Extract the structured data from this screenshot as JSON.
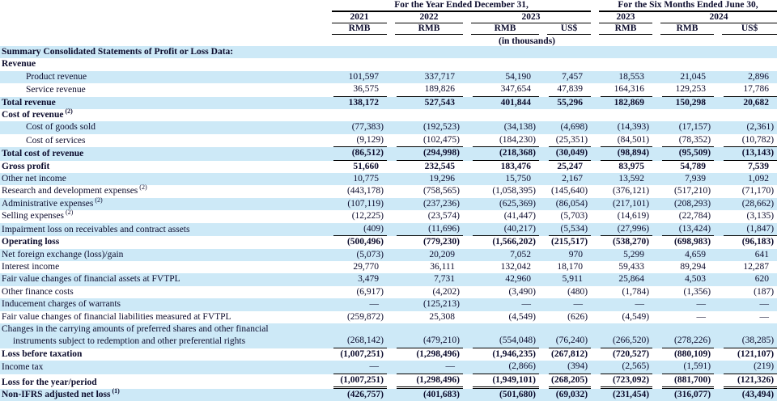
{
  "header": {
    "group1": "For the Year Ended December 31,",
    "group2": "For the Six Months Ended June 30,",
    "years": [
      {
        "label": "2021",
        "span": 1
      },
      {
        "label": "2022",
        "span": 1
      },
      {
        "label": "2023",
        "span": 2
      },
      {
        "label": "2023",
        "span": 1
      },
      {
        "label": "2024",
        "span": 2
      }
    ],
    "currencies": [
      "RMB",
      "RMB",
      "RMB",
      "US$",
      "RMB",
      "RMB",
      "US$"
    ],
    "units_note": "(in thousands)"
  },
  "rows": [
    {
      "label": "Summary Consolidated Statements of Profit or Loss Data:",
      "bold": true,
      "highlight": true,
      "values": []
    },
    {
      "label": "Revenue",
      "bold": true,
      "highlight": false,
      "values": []
    },
    {
      "label": "Product revenue",
      "indent": 1,
      "highlight": true,
      "values": [
        "101,597",
        "337,717",
        "54,190",
        "7,457",
        "18,553",
        "21,045",
        "2,896"
      ]
    },
    {
      "label": "Service revenue",
      "indent": 1,
      "highlight": false,
      "border": "bottom",
      "values": [
        "36,575",
        "189,826",
        "347,654",
        "47,839",
        "164,316",
        "129,253",
        "17,786"
      ]
    },
    {
      "label": "Total revenue",
      "bold": true,
      "highlight": true,
      "values": [
        "138,172",
        "527,543",
        "401,844",
        "55,296",
        "182,869",
        "150,298",
        "20,682"
      ]
    },
    {
      "label": "Cost of revenue",
      "sup": "(2)",
      "bold": true,
      "highlight": false,
      "values": []
    },
    {
      "label": "Cost of goods sold",
      "indent": 1,
      "highlight": true,
      "values": [
        "(77,383)",
        "(192,523)",
        "(34,138)",
        "(4,698)",
        "(14,393)",
        "(17,157)",
        "(2,361)"
      ]
    },
    {
      "label": "Cost of services",
      "indent": 1,
      "highlight": false,
      "border": "bottom",
      "values": [
        "(9,129)",
        "(102,475)",
        "(184,230)",
        "(25,351)",
        "(84,501)",
        "(78,352)",
        "(10,782)"
      ]
    },
    {
      "label": "Total cost of revenue",
      "bold": true,
      "highlight": true,
      "border": "bottom",
      "values": [
        "(86,512)",
        "(294,998)",
        "(218,368)",
        "(30,049)",
        "(98,894)",
        "(95,509)",
        "(13,143)"
      ]
    },
    {
      "label": "Gross profit",
      "bold": true,
      "highlight": false,
      "values": [
        "51,660",
        "232,545",
        "183,476",
        "25,247",
        "83,975",
        "54,789",
        "7,539"
      ]
    },
    {
      "label": "Other net income",
      "highlight": true,
      "values": [
        "10,775",
        "19,296",
        "15,750",
        "2,167",
        "13,592",
        "7,939",
        "1,092"
      ]
    },
    {
      "label": "Research and development expenses",
      "sup": "(2)",
      "highlight": false,
      "values": [
        "(443,178)",
        "(758,565)",
        "(1,058,395)",
        "(145,640)",
        "(376,121)",
        "(517,210)",
        "(71,170)"
      ]
    },
    {
      "label": "Administrative expenses",
      "sup": "(2)",
      "highlight": true,
      "values": [
        "(107,119)",
        "(237,236)",
        "(625,369)",
        "(86,054)",
        "(217,101)",
        "(208,293)",
        "(28,662)"
      ]
    },
    {
      "label": "Selling expenses",
      "sup": "(2)",
      "highlight": false,
      "values": [
        "(12,225)",
        "(23,574)",
        "(41,447)",
        "(5,703)",
        "(14,619)",
        "(22,784)",
        "(3,135)"
      ]
    },
    {
      "label": "Impairment loss on receivables and contract assets",
      "highlight": true,
      "border": "bottom",
      "values": [
        "(409)",
        "(11,696)",
        "(40,217)",
        "(5,534)",
        "(27,996)",
        "(13,424)",
        "(1,847)"
      ]
    },
    {
      "label": "Operating loss",
      "bold": true,
      "highlight": false,
      "values": [
        "(500,496)",
        "(779,230)",
        "(1,566,202)",
        "(215,517)",
        "(538,270)",
        "(698,983)",
        "(96,183)"
      ]
    },
    {
      "label": "Net foreign exchange (loss)/gain",
      "highlight": true,
      "values": [
        "(5,073)",
        "20,209",
        "7,052",
        "970",
        "5,299",
        "4,659",
        "641"
      ]
    },
    {
      "label": "Interest income",
      "highlight": false,
      "values": [
        "29,770",
        "36,111",
        "132,042",
        "18,170",
        "59,433",
        "89,294",
        "12,287"
      ]
    },
    {
      "label": "Fair value changes of financial assets at FVTPL",
      "highlight": true,
      "values": [
        "3,479",
        "7,731",
        "42,960",
        "5,911",
        "25,864",
        "4,503",
        "620"
      ]
    },
    {
      "label": "Other finance costs",
      "highlight": false,
      "values": [
        "(6,917)",
        "(4,202)",
        "(3,490)",
        "(480)",
        "(1,784)",
        "(1,356)",
        "(187)"
      ]
    },
    {
      "label": "Inducement charges of warrants",
      "highlight": true,
      "values": [
        "—",
        "(125,213)",
        "—",
        "—",
        "—",
        "—",
        "—"
      ]
    },
    {
      "label": "Fair value changes of financial liabilities measured at FVTPL",
      "highlight": false,
      "values": [
        "(259,872)",
        "25,308",
        "(4,549)",
        "(626)",
        "(4,549)",
        "—",
        "—"
      ]
    },
    {
      "label": "Changes in the carrying amounts of preferred shares and other financial",
      "label2": "instruments subject to redemption and other preferential rights",
      "highlight": true,
      "border": "bottom",
      "values": [
        "(268,142)",
        "(479,210)",
        "(554,048)",
        "(76,240)",
        "(266,520)",
        "(278,226)",
        "(38,285)"
      ]
    },
    {
      "label": "Loss before taxation",
      "bold": true,
      "highlight": false,
      "values": [
        "(1,007,251)",
        "(1,298,496)",
        "(1,946,235)",
        "(267,812)",
        "(720,527)",
        "(880,109)",
        "(121,107)"
      ]
    },
    {
      "label": "Income tax",
      "highlight": true,
      "border": "bottom",
      "values": [
        "—",
        "—",
        "(2,866)",
        "(394)",
        "(2,565)",
        "(1,591)",
        "(219)"
      ]
    },
    {
      "label": "Loss for the year/period",
      "bold": true,
      "highlight": false,
      "border": "double",
      "values": [
        "(1,007,251)",
        "(1,298,496)",
        "(1,949,101)",
        "(268,205)",
        "(723,092)",
        "(881,700)",
        "(121,326)"
      ]
    },
    {
      "label": "Non-IFRS adjusted net loss",
      "sup": "(1)",
      "bold": true,
      "highlight": true,
      "values": [
        "(426,757)",
        "(401,683)",
        "(501,680)",
        "(69,032)",
        "(231,454)",
        "(316,077)",
        "(43,494)"
      ]
    }
  ],
  "colors": {
    "row_highlight": "#cde9f7",
    "text": "#0c0c2d",
    "rule": "#000000"
  }
}
